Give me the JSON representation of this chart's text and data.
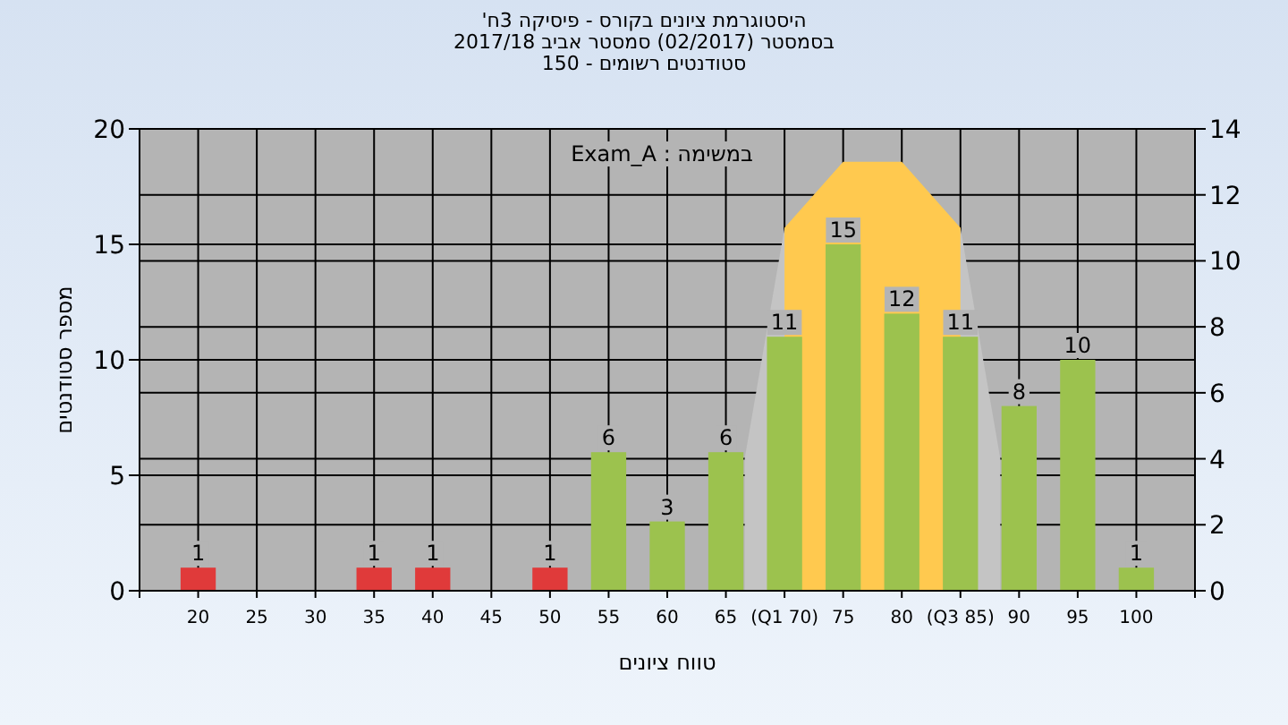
{
  "chart_data": {
    "type": "bar",
    "title": "היסטוגרמת ציונים בקורס - פיסיקה 3ח'",
    "subtitle": "בסמסטר (02/2017) סמסטר אביב 2017/18\nסטודנטים רשומים - 150",
    "xlabel": "טווח ציונים",
    "ylabel": "מספר סטודנטים",
    "annotations": [
      "במשימה : Exam_A"
    ],
    "series": [
      {
        "type": "area",
        "axis": "y2",
        "color": "#c4c4c4",
        "x": [
          66.6,
          70,
          85,
          88.4
        ],
        "values": [
          4,
          11,
          11,
          4
        ]
      },
      {
        "type": "area",
        "axis": "y2",
        "color": "#ffc94f",
        "x": [
          70,
          75,
          80,
          85
        ],
        "values": [
          11,
          13,
          13,
          11
        ]
      },
      {
        "color": "#e03a3a",
        "x": [
          20,
          35,
          40,
          50
        ],
        "values": [
          1,
          1,
          1,
          1
        ],
        "value_labels": [
          "1",
          "1",
          "1",
          "1"
        ]
      },
      {
        "color": "#9cc24e",
        "x": [
          55,
          60,
          65,
          70,
          75,
          80,
          85,
          90,
          95,
          100
        ],
        "values": [
          6,
          3,
          6,
          11,
          15,
          12,
          11,
          8,
          10,
          1
        ],
        "value_labels": [
          "6",
          "3",
          "6",
          "11",
          "15",
          "12",
          "11",
          "8",
          "10",
          "1"
        ]
      }
    ],
    "xlim": [
      15,
      105
    ],
    "xticks": [
      20,
      25,
      30,
      35,
      40,
      45,
      50,
      55,
      60,
      65,
      {
        "value": 70,
        "label": "(Q1 70)"
      },
      75,
      80,
      {
        "value": 85,
        "label": "(Q3 85)"
      },
      90,
      95,
      100
    ],
    "ylim": [
      0,
      20
    ],
    "yticks": [
      0,
      5,
      10,
      15,
      20
    ],
    "y2lim": [
      0,
      14
    ],
    "y2ticks": [
      0,
      2,
      4,
      6,
      8,
      10,
      12,
      14
    ],
    "grid": true
  }
}
